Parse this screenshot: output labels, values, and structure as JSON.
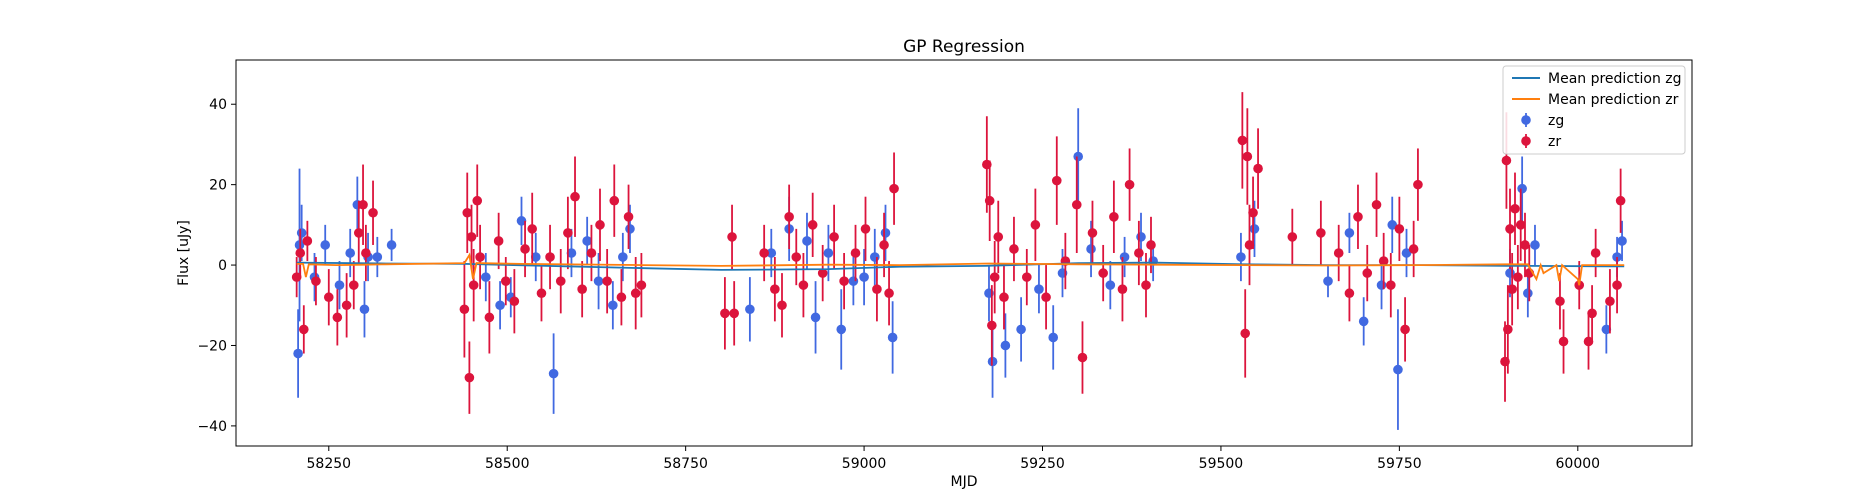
{
  "chart_data": {
    "type": "scatter",
    "title": "GP Regression",
    "xlabel": "MJD",
    "ylabel": "Flux [uJy]",
    "xlim": [
      58120,
      60160
    ],
    "ylim": [
      -45,
      51
    ],
    "x_ticks": [
      58250,
      58500,
      58750,
      59000,
      59250,
      59500,
      59750,
      60000
    ],
    "y_ticks": [
      -40,
      -20,
      0,
      20,
      40
    ],
    "grid": false,
    "legend_position": "top-right",
    "series": [
      {
        "name": "Mean prediction zg",
        "kind": "line",
        "color": "#1f77b4",
        "x": [
          58205,
          58330,
          58440,
          58700,
          58800,
          58950,
          59050,
          59170,
          59300,
          59410,
          59530,
          59650,
          59780,
          59900,
          59930,
          60040,
          60065
        ],
        "y": [
          0.6,
          0.4,
          0.3,
          -0.8,
          -1.2,
          -1.0,
          -0.4,
          -0.2,
          0.5,
          0.6,
          0.2,
          0.0,
          0.0,
          -0.2,
          -0.2,
          -0.3,
          -0.3
        ]
      },
      {
        "name": "Mean prediction zr",
        "kind": "line",
        "color": "#ff7f0e",
        "x": [
          58205,
          58214,
          58218,
          58222,
          58260,
          58300,
          58330,
          58440,
          58447,
          58452,
          58457,
          58520,
          58690,
          58800,
          58950,
          59050,
          59175,
          59300,
          59410,
          59530,
          59650,
          59780,
          59900,
          59930,
          59942,
          59948,
          59952,
          59970,
          59974,
          59978,
          60000,
          60002,
          60006,
          60040,
          60065
        ],
        "y": [
          0.3,
          0.3,
          -3.0,
          0.2,
          0.0,
          0.1,
          0.2,
          0.5,
          2.5,
          -3.5,
          0.5,
          0.3,
          0.0,
          -0.2,
          0.1,
          0.0,
          0.4,
          0.2,
          0.1,
          0.0,
          -0.1,
          0.0,
          0.2,
          0.2,
          -3.5,
          0.0,
          -2.0,
          0.0,
          -4.0,
          0.0,
          -3.5,
          -5.0,
          0.0,
          0.0,
          0.0
        ]
      },
      {
        "name": "zg",
        "kind": "errorbar",
        "color": "#4169e1",
        "points": [
          [
            58207,
            -22,
            11
          ],
          [
            58209,
            5,
            19
          ],
          [
            58212,
            8,
            7
          ],
          [
            58230,
            -3,
            6
          ],
          [
            58245,
            5,
            5
          ],
          [
            58265,
            -5,
            6
          ],
          [
            58280,
            3,
            6
          ],
          [
            58290,
            15,
            7
          ],
          [
            58300,
            -11,
            7
          ],
          [
            58305,
            2,
            6
          ],
          [
            58318,
            2,
            5
          ],
          [
            58338,
            5,
            4
          ],
          [
            58470,
            -3,
            6
          ],
          [
            58490,
            -10,
            6
          ],
          [
            58505,
            -8,
            5
          ],
          [
            58520,
            11,
            6
          ],
          [
            58540,
            2,
            6
          ],
          [
            58565,
            -27,
            10
          ],
          [
            58590,
            3,
            6
          ],
          [
            58612,
            6,
            6
          ],
          [
            58628,
            -4,
            7
          ],
          [
            58648,
            -10,
            6
          ],
          [
            58662,
            2,
            6
          ],
          [
            58672,
            9,
            6
          ],
          [
            58840,
            -11,
            8
          ],
          [
            58870,
            3,
            6
          ],
          [
            58895,
            9,
            8
          ],
          [
            58920,
            6,
            7
          ],
          [
            58932,
            -13,
            9
          ],
          [
            58950,
            3,
            7
          ],
          [
            58968,
            -16,
            10
          ],
          [
            58985,
            -4,
            6
          ],
          [
            59000,
            -3,
            7
          ],
          [
            59015,
            2,
            7
          ],
          [
            59030,
            8,
            7
          ],
          [
            59040,
            -18,
            9
          ],
          [
            59175,
            -7,
            7
          ],
          [
            59180,
            -24,
            9
          ],
          [
            59198,
            -20,
            8
          ],
          [
            59220,
            -16,
            8
          ],
          [
            59245,
            -6,
            6
          ],
          [
            59265,
            -18,
            8
          ],
          [
            59278,
            -2,
            6
          ],
          [
            59300,
            27,
            12
          ],
          [
            59318,
            4,
            7
          ],
          [
            59345,
            -5,
            6
          ],
          [
            59365,
            2,
            5
          ],
          [
            59388,
            7,
            6
          ],
          [
            59405,
            1,
            5
          ],
          [
            59528,
            2,
            6
          ],
          [
            59547,
            9,
            7
          ],
          [
            59650,
            -4,
            4
          ],
          [
            59680,
            8,
            5
          ],
          [
            59700,
            -14,
            6
          ],
          [
            59725,
            -5,
            6
          ],
          [
            59740,
            10,
            7
          ],
          [
            59748,
            -26,
            15
          ],
          [
            59760,
            3,
            6
          ],
          [
            59905,
            -2,
            6
          ],
          [
            59922,
            19,
            8
          ],
          [
            59930,
            -7,
            6
          ],
          [
            59940,
            5,
            5
          ],
          [
            60040,
            -16,
            6
          ],
          [
            60055,
            2,
            5
          ],
          [
            60062,
            6,
            5
          ]
        ]
      },
      {
        "name": "zr",
        "kind": "errorbar",
        "color": "#dc143c",
        "points": [
          [
            58205,
            -3,
            5
          ],
          [
            58210,
            3,
            6
          ],
          [
            58215,
            -16,
            6
          ],
          [
            58220,
            6,
            5
          ],
          [
            58232,
            -4,
            6
          ],
          [
            58250,
            -8,
            7
          ],
          [
            58262,
            -13,
            7
          ],
          [
            58275,
            -10,
            8
          ],
          [
            58285,
            -5,
            6
          ],
          [
            58292,
            8,
            8
          ],
          [
            58298,
            15,
            10
          ],
          [
            58302,
            3,
            7
          ],
          [
            58312,
            13,
            8
          ],
          [
            58440,
            -11,
            12
          ],
          [
            58444,
            13,
            10
          ],
          [
            58447,
            -28,
            9
          ],
          [
            58450,
            7,
            8
          ],
          [
            58453,
            -5,
            9
          ],
          [
            58458,
            16,
            9
          ],
          [
            58462,
            2,
            8
          ],
          [
            58475,
            -13,
            9
          ],
          [
            58488,
            6,
            7
          ],
          [
            58498,
            -4,
            6
          ],
          [
            58510,
            -9,
            8
          ],
          [
            58525,
            4,
            7
          ],
          [
            58535,
            9,
            9
          ],
          [
            58548,
            -7,
            7
          ],
          [
            58560,
            2,
            8
          ],
          [
            58575,
            -4,
            8
          ],
          [
            58585,
            8,
            9
          ],
          [
            58595,
            17,
            10
          ],
          [
            58605,
            -6,
            7
          ],
          [
            58618,
            3,
            7
          ],
          [
            58630,
            10,
            9
          ],
          [
            58640,
            -4,
            8
          ],
          [
            58650,
            16,
            9
          ],
          [
            58660,
            -8,
            7
          ],
          [
            58670,
            12,
            8
          ],
          [
            58680,
            -7,
            9
          ],
          [
            58688,
            -5,
            8
          ],
          [
            58805,
            -12,
            9
          ],
          [
            58815,
            7,
            8
          ],
          [
            58818,
            -12,
            8
          ],
          [
            58860,
            3,
            7
          ],
          [
            58875,
            -6,
            8
          ],
          [
            58885,
            -10,
            8
          ],
          [
            58895,
            12,
            8
          ],
          [
            58905,
            2,
            7
          ],
          [
            58915,
            -5,
            8
          ],
          [
            58928,
            10,
            8
          ],
          [
            58942,
            -2,
            7
          ],
          [
            58958,
            7,
            8
          ],
          [
            58972,
            -4,
            7
          ],
          [
            58988,
            3,
            7
          ],
          [
            59002,
            9,
            8
          ],
          [
            59018,
            -6,
            8
          ],
          [
            59028,
            5,
            8
          ],
          [
            59035,
            -7,
            8
          ],
          [
            59042,
            19,
            9
          ],
          [
            59172,
            25,
            12
          ],
          [
            59176,
            16,
            10
          ],
          [
            59179,
            -15,
            10
          ],
          [
            59183,
            -3,
            9
          ],
          [
            59188,
            7,
            9
          ],
          [
            59196,
            -8,
            8
          ],
          [
            59210,
            4,
            8
          ],
          [
            59228,
            -3,
            7
          ],
          [
            59240,
            10,
            9
          ],
          [
            59255,
            -8,
            8
          ],
          [
            59270,
            21,
            11
          ],
          [
            59282,
            1,
            7
          ],
          [
            59298,
            15,
            12
          ],
          [
            59306,
            -23,
            9
          ],
          [
            59320,
            8,
            8
          ],
          [
            59335,
            -2,
            7
          ],
          [
            59350,
            12,
            9
          ],
          [
            59362,
            -6,
            8
          ],
          [
            59372,
            20,
            9
          ],
          [
            59385,
            3,
            8
          ],
          [
            59395,
            -5,
            8
          ],
          [
            59402,
            5,
            7
          ],
          [
            59530,
            31,
            12
          ],
          [
            59534,
            -17,
            11
          ],
          [
            59537,
            27,
            12
          ],
          [
            59540,
            5,
            10
          ],
          [
            59545,
            13,
            9
          ],
          [
            59552,
            24,
            10
          ],
          [
            59600,
            7,
            7
          ],
          [
            59640,
            8,
            8
          ],
          [
            59665,
            3,
            7
          ],
          [
            59680,
            -7,
            7
          ],
          [
            59692,
            12,
            8
          ],
          [
            59705,
            -2,
            7
          ],
          [
            59718,
            15,
            8
          ],
          [
            59728,
            1,
            7
          ],
          [
            59738,
            -5,
            8
          ],
          [
            59750,
            9,
            8
          ],
          [
            59758,
            -16,
            8
          ],
          [
            59770,
            4,
            7
          ],
          [
            59776,
            20,
            9
          ],
          [
            59898,
            -24,
            10
          ],
          [
            59900,
            26,
            12
          ],
          [
            59902,
            -16,
            11
          ],
          [
            59905,
            9,
            10
          ],
          [
            59908,
            -6,
            9
          ],
          [
            59912,
            14,
            9
          ],
          [
            59916,
            -3,
            8
          ],
          [
            59920,
            10,
            9
          ],
          [
            59926,
            5,
            8
          ],
          [
            59932,
            -2,
            7
          ],
          [
            59975,
            -9,
            7
          ],
          [
            59980,
            -19,
            8
          ],
          [
            60002,
            -5,
            6
          ],
          [
            60015,
            -19,
            7
          ],
          [
            60020,
            -12,
            7
          ],
          [
            60025,
            3,
            6
          ],
          [
            60045,
            -9,
            8
          ],
          [
            60055,
            -5,
            7
          ],
          [
            60060,
            16,
            8
          ]
        ]
      }
    ]
  }
}
